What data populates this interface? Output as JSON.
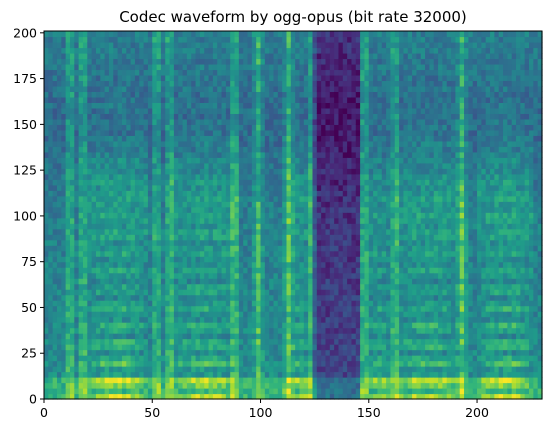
{
  "chart_data": {
    "type": "heatmap",
    "title": "Codec waveform by ogg-opus (bit rate 32000)",
    "xlabel": "",
    "ylabel": "",
    "xlim": [
      0,
      230
    ],
    "ylim": [
      0,
      201
    ],
    "colormap": "viridis",
    "grid": false,
    "xticks": [
      0,
      50,
      100,
      150,
      200
    ],
    "yticks": [
      0,
      25,
      50,
      75,
      100,
      125,
      150,
      175,
      200
    ],
    "xtick_labels": [
      "0",
      "50",
      "100",
      "150",
      "200"
    ],
    "ytick_labels": [
      "0",
      "25",
      "50",
      "75",
      "100",
      "125",
      "150",
      "175",
      "200"
    ],
    "bright_columns": [
      12,
      18,
      52,
      58,
      88,
      99,
      113,
      124,
      148,
      162,
      193
    ],
    "dark_band": [
      124,
      146
    ],
    "voiced_segments": [
      {
        "x": [
          20,
          48
        ],
        "level": 0.85
      },
      {
        "x": [
          58,
          90
        ],
        "level": 0.75
      },
      {
        "x": [
          113,
          124
        ],
        "level": 0.6
      },
      {
        "x": [
          150,
          160
        ],
        "level": 0.55
      },
      {
        "x": [
          162,
          193
        ],
        "level": 0.75
      },
      {
        "x": [
          200,
          226
        ],
        "level": 0.85
      }
    ]
  }
}
